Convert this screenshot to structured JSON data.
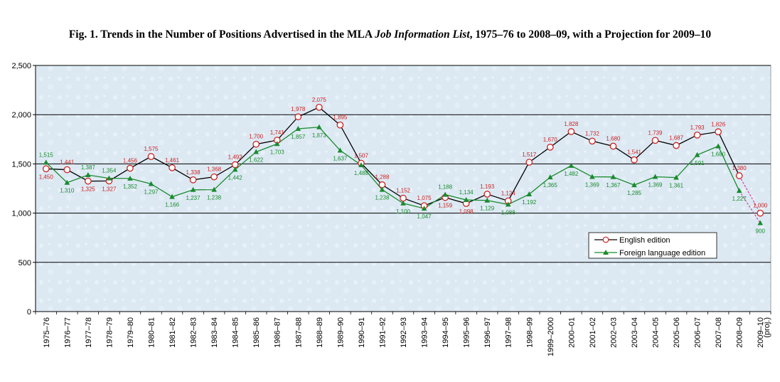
{
  "title": {
    "prefix": "Fig. 1. Trends in the Number of Positions Advertised in the MLA ",
    "italic": "Job Information List",
    "suffix": ", 1975–76 to 2008–09, with a Projection for 2009–10"
  },
  "chart_data": {
    "type": "line",
    "ylim": [
      0,
      2500
    ],
    "yticks": [
      0,
      500,
      1000,
      1500,
      2000,
      2500
    ],
    "ytick_labels": [
      "0",
      "500",
      "1,000",
      "1,500",
      "2,000",
      "2,500"
    ],
    "grid": true,
    "legend_position": "bottom-right",
    "categories": [
      "1975–76",
      "1976–77",
      "1977–78",
      "1978–79",
      "1979–80",
      "1980–81",
      "1981–82",
      "1982–83",
      "1983–84",
      "1984–85",
      "1985–86",
      "1986–87",
      "1987–88",
      "1988–89",
      "1989–90",
      "1990–91",
      "1991–92",
      "1992–93",
      "1993–94",
      "1994–95",
      "1995–96",
      "1996–97",
      "1997–98",
      "1998–99",
      "1999–2000",
      "2000–01",
      "2001–02",
      "2002–03",
      "2003–04",
      "2004–05",
      "2005–06",
      "2006–07",
      "2007–08",
      "2008–09",
      "2009–10"
    ],
    "extra_tick_label": "(proj.)",
    "series": [
      {
        "name": "English edition",
        "color": "#000000",
        "marker_color": "#cc2222",
        "label_color": "#cc2222",
        "marker": "circle",
        "values": [
          1450,
          1441,
          1325,
          1327,
          1456,
          1575,
          1461,
          1338,
          1368,
          1492,
          1700,
          1741,
          1978,
          2075,
          1895,
          1507,
          1288,
          1152,
          1075,
          1159,
          1098,
          1193,
          1124,
          1517,
          1670,
          1828,
          1732,
          1680,
          1541,
          1739,
          1687,
          1793,
          1826,
          1380,
          1000
        ],
        "labels": [
          "1,450",
          "1,441",
          "1,325",
          "1,327",
          "1,456",
          "1,575",
          "1,461",
          "1,338",
          "1,368",
          "1,492",
          "1,700",
          "1,741",
          "1,978",
          "2,075",
          "1,895",
          "1,507",
          "1,288",
          "1,152",
          "1,075",
          "1,159",
          "1,098",
          "1,193",
          "1,124",
          "1,517",
          "1,670",
          "1,828",
          "1,732",
          "1,680",
          "1,541",
          "1,739",
          "1,687",
          "1,793",
          "1,826",
          "1,380",
          "1,000"
        ]
      },
      {
        "name": "Foreign language edition",
        "color": "#1a8a2e",
        "marker_color": "#1a8a2e",
        "label_color": "#1a8a2e",
        "marker": "triangle",
        "values": [
          1515,
          1310,
          1387,
          1354,
          1352,
          1297,
          1166,
          1237,
          1238,
          1442,
          1622,
          1703,
          1857,
          1873,
          1637,
          1488,
          1238,
          1100,
          1047,
          1188,
          1134,
          1129,
          1088,
          1192,
          1365,
          1482,
          1369,
          1367,
          1285,
          1369,
          1361,
          1591,
          1680,
          1227,
          900
        ],
        "labels": [
          "1,515",
          "1,310",
          "1,387",
          "1,354",
          "1,352",
          "1,297",
          "1,166",
          "1,237",
          "1,238",
          "1,442",
          "1,622",
          "1,703",
          "1,857",
          "1,873",
          "1,637",
          "1,488",
          "1,238",
          "1,100",
          "1,047",
          "1,188",
          "1,134",
          "1,129",
          "1,088",
          "1,192",
          "1,365",
          "1,482",
          "1,369",
          "1,367",
          "1,285",
          "1,369",
          "1,361",
          "1,591",
          "1,680",
          "1,227",
          "900"
        ]
      }
    ],
    "projection_color": "#e0309a"
  }
}
